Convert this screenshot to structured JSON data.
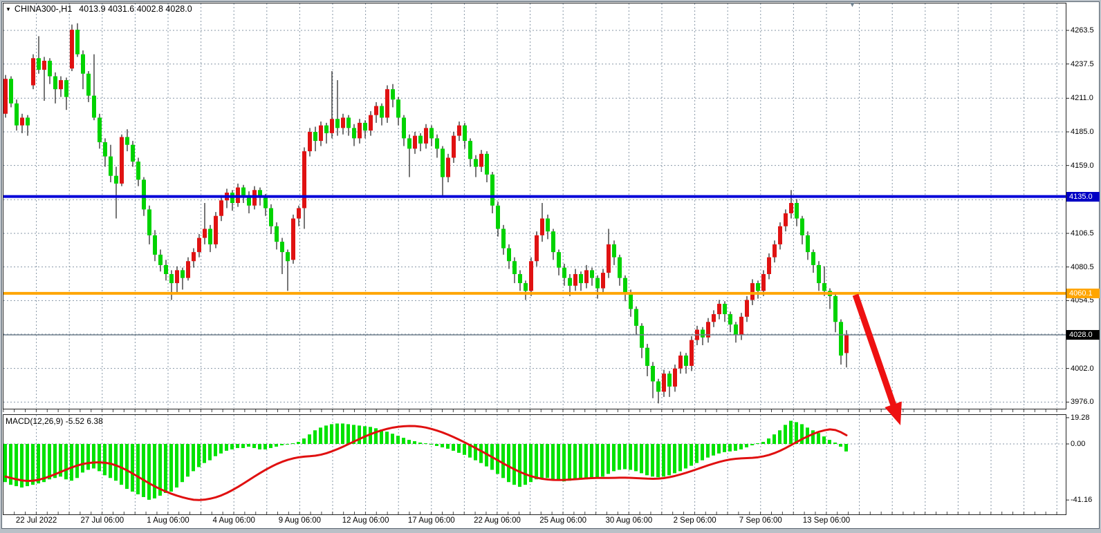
{
  "window": {
    "title_symbol": "CHINA300-,H1",
    "title_ohlc": "4013.9 4031.6 4002.8 4028.0",
    "dropdown_glyph": "▼",
    "scroll_marker_glyph": "▼"
  },
  "chart_data": {
    "type": "candlestick",
    "symbol": "CHINA300-",
    "timeframe": "H1",
    "title": "CHINA300-,H1",
    "last_bar": {
      "open": 4013.9,
      "high": 4031.6,
      "low": 4002.8,
      "close": 4028.0
    },
    "colors": {
      "bull_candle": "#e01212",
      "bear_candle": "#00d300",
      "wick": "#1a1a1a",
      "grid": "#8696a6",
      "blue_line": "#0000d8",
      "orange_line": "#ffa500",
      "price_line": "#6f7f8c",
      "macd_hist": "#00e200",
      "macd_signal": "#e01010",
      "arrow": "#ee1111",
      "badge_blue": "#0000c4",
      "badge_orange": "#ffa500",
      "badge_black": "#000000"
    },
    "y_axis": {
      "tick_labels": [
        "4263.5",
        "4237.5",
        "4211.0",
        "4185.0",
        "4159.0",
        "4106.5",
        "4080.5",
        "4054.5",
        "4002.0",
        "3976.0"
      ],
      "tick_values": [
        4263.5,
        4237.5,
        4211.0,
        4185.0,
        4159.0,
        4106.5,
        4080.5,
        4054.5,
        4002.0,
        3976.0
      ],
      "grid_values": [
        4263.5,
        4237.5,
        4211.0,
        4185.0,
        4159.0,
        4132.5,
        4106.5,
        4080.5,
        4054.5,
        4028.5,
        4002.0,
        3976.0
      ],
      "range_top": 4285.0,
      "range_bottom": 3971.0
    },
    "badges": [
      {
        "text": "4135.0",
        "value": 4135.0,
        "color_key": "badge_blue"
      },
      {
        "text": "4060.1",
        "value": 4060.1,
        "color_key": "badge_orange"
      },
      {
        "text": "4028.0",
        "value": 4028.0,
        "color_key": "badge_black"
      }
    ],
    "hlines": [
      {
        "value": 4135.0,
        "color_key": "blue_line",
        "width": 4
      },
      {
        "value": 4060.1,
        "color_key": "orange_line",
        "width": 4
      },
      {
        "value": 4028.0,
        "color_key": "price_line",
        "width": 1.4
      }
    ],
    "x_axis": {
      "labels": [
        "22 Jul 2022",
        "27 Jul 06:00",
        "1 Aug 06:00",
        "4 Aug 06:00",
        "9 Aug 06:00",
        "12 Aug 06:00",
        "17 Aug 06:00",
        "22 Aug 06:00",
        "25 Aug 06:00",
        "30 Aug 06:00",
        "2 Sep 06:00",
        "7 Sep 06:00",
        "13 Sep 06:00"
      ]
    },
    "candles": [
      [
        4199,
        4229,
        4196,
        4226
      ],
      [
        4226,
        4228,
        4204,
        4207
      ],
      [
        4207,
        4210,
        4186,
        4190
      ],
      [
        4190,
        4199,
        4184,
        4196
      ],
      [
        4196,
        4198,
        4182,
        4190
      ],
      [
        4221,
        4245,
        4218,
        4242
      ],
      [
        4242,
        4259,
        4230,
        4233
      ],
      [
        4233,
        4243,
        4209,
        4240
      ],
      [
        4240,
        4242,
        4222,
        4228
      ],
      [
        4228,
        4231,
        4207,
        4218
      ],
      [
        4218,
        4228,
        4212,
        4225
      ],
      [
        4225,
        4227,
        4202,
        4212
      ],
      [
        4234,
        4268,
        4232,
        4264
      ],
      [
        4264,
        4269,
        4243,
        4245
      ],
      [
        4245,
        4248,
        4218,
        4230
      ],
      [
        4230,
        4232,
        4208,
        4213
      ],
      [
        4213,
        4245,
        4194,
        4196
      ],
      [
        4196,
        4199,
        4172,
        4177
      ],
      [
        4177,
        4180,
        4158,
        4166
      ],
      [
        4166,
        4175,
        4146,
        4151
      ],
      [
        4151,
        4158,
        4118,
        4145
      ],
      [
        4145,
        4183,
        4143,
        4181
      ],
      [
        4181,
        4187,
        4170,
        4175
      ],
      [
        4175,
        4178,
        4158,
        4162
      ],
      [
        4162,
        4165,
        4143,
        4148
      ],
      [
        4148,
        4150,
        4120,
        4125
      ],
      [
        4125,
        4128,
        4098,
        4105
      ],
      [
        4105,
        4109,
        4085,
        4090
      ],
      [
        4090,
        4094,
        4077,
        4082
      ],
      [
        4082,
        4086,
        4070,
        4075
      ],
      [
        4075,
        4078,
        4055,
        4068
      ],
      [
        4068,
        4081,
        4060,
        4078
      ],
      [
        4078,
        4080,
        4063,
        4072
      ],
      [
        4072,
        4088,
        4070,
        4085
      ],
      [
        4085,
        4095,
        4080,
        4092
      ],
      [
        4092,
        4106,
        4088,
        4103
      ],
      [
        4103,
        4130,
        4098,
        4110
      ],
      [
        4110,
        4113,
        4092,
        4098
      ],
      [
        4098,
        4123,
        4095,
        4120
      ],
      [
        4120,
        4136,
        4116,
        4132
      ],
      [
        4132,
        4141,
        4126,
        4138
      ],
      [
        4138,
        4140,
        4124,
        4130
      ],
      [
        4130,
        4145,
        4127,
        4142
      ],
      [
        4142,
        4144,
        4130,
        4136
      ],
      [
        4136,
        4139,
        4122,
        4128
      ],
      [
        4128,
        4143,
        4125,
        4140
      ],
      [
        4140,
        4142,
        4128,
        4134
      ],
      [
        4134,
        4137,
        4120,
        4126
      ],
      [
        4126,
        4129,
        4106,
        4112
      ],
      [
        4112,
        4115,
        4094,
        4100
      ],
      [
        4100,
        4103,
        4075,
        4092
      ],
      [
        4092,
        4094,
        4062,
        4085
      ],
      [
        4086,
        4121,
        4083,
        4118
      ],
      [
        4118,
        4128,
        4112,
        4126
      ],
      [
        4126,
        4173,
        4110,
        4170
      ],
      [
        4170,
        4188,
        4166,
        4185
      ],
      [
        4185,
        4189,
        4170,
        4178
      ],
      [
        4178,
        4193,
        4174,
        4190
      ],
      [
        4190,
        4192,
        4176,
        4184
      ],
      [
        4184,
        4232,
        4180,
        4195
      ],
      [
        4195,
        4225,
        4182,
        4188
      ],
      [
        4188,
        4199,
        4183,
        4196
      ],
      [
        4196,
        4198,
        4182,
        4188
      ],
      [
        4188,
        4191,
        4174,
        4180
      ],
      [
        4180,
        4195,
        4176,
        4192
      ],
      [
        4192,
        4194,
        4180,
        4186
      ],
      [
        4186,
        4201,
        4182,
        4198
      ],
      [
        4198,
        4208,
        4192,
        4205
      ],
      [
        4205,
        4207,
        4190,
        4196
      ],
      [
        4196,
        4221,
        4192,
        4218
      ],
      [
        4218,
        4222,
        4204,
        4210
      ],
      [
        4210,
        4212,
        4190,
        4196
      ],
      [
        4196,
        4198,
        4174,
        4180
      ],
      [
        4180,
        4183,
        4150,
        4172
      ],
      [
        4172,
        4185,
        4168,
        4182
      ],
      [
        4182,
        4184,
        4170,
        4176
      ],
      [
        4176,
        4191,
        4172,
        4188
      ],
      [
        4188,
        4190,
        4174,
        4180
      ],
      [
        4180,
        4183,
        4165,
        4172
      ],
      [
        4172,
        4174,
        4134,
        4150
      ],
      [
        4150,
        4168,
        4146,
        4165
      ],
      [
        4165,
        4185,
        4161,
        4182
      ],
      [
        4182,
        4193,
        4178,
        4190
      ],
      [
        4190,
        4192,
        4172,
        4178
      ],
      [
        4178,
        4180,
        4158,
        4164
      ],
      [
        4164,
        4167,
        4150,
        4158
      ],
      [
        4158,
        4171,
        4154,
        4168
      ],
      [
        4168,
        4170,
        4146,
        4152
      ],
      [
        4152,
        4154,
        4122,
        4128
      ],
      [
        4128,
        4131,
        4104,
        4110
      ],
      [
        4110,
        4113,
        4090,
        4095
      ],
      [
        4095,
        4098,
        4079,
        4085
      ],
      [
        4085,
        4088,
        4068,
        4075
      ],
      [
        4075,
        4078,
        4062,
        4068
      ],
      [
        4068,
        4070,
        4055,
        4062
      ],
      [
        4062,
        4088,
        4058,
        4085
      ],
      [
        4085,
        4108,
        4081,
        4105
      ],
      [
        4105,
        4130,
        4100,
        4118
      ],
      [
        4118,
        4121,
        4102,
        4108
      ],
      [
        4108,
        4110,
        4086,
        4092
      ],
      [
        4092,
        4094,
        4074,
        4080
      ],
      [
        4080,
        4083,
        4066,
        4072
      ],
      [
        4072,
        4075,
        4058,
        4066
      ],
      [
        4066,
        4079,
        4062,
        4075
      ],
      [
        4075,
        4077,
        4062,
        4068
      ],
      [
        4068,
        4082,
        4064,
        4078
      ],
      [
        4078,
        4080,
        4066,
        4072
      ],
      [
        4072,
        4074,
        4056,
        4064
      ],
      [
        4064,
        4079,
        4060,
        4076
      ],
      [
        4076,
        4110,
        4072,
        4098
      ],
      [
        4098,
        4101,
        4082,
        4088
      ],
      [
        4088,
        4090,
        4066,
        4072
      ],
      [
        4072,
        4074,
        4054,
        4060
      ],
      [
        4060,
        4063,
        4042,
        4048
      ],
      [
        4048,
        4050,
        4028,
        4035
      ],
      [
        4035,
        4037,
        4010,
        4018
      ],
      [
        4018,
        4021,
        3996,
        4004
      ],
      [
        4004,
        4007,
        3979,
        3992
      ],
      [
        3992,
        3994,
        3975,
        3984
      ],
      [
        3984,
        4001,
        3980,
        3998
      ],
      [
        3998,
        4000,
        3980,
        3988
      ],
      [
        3988,
        4005,
        3984,
        4002
      ],
      [
        4002,
        4015,
        3998,
        4012
      ],
      [
        4012,
        4014,
        3998,
        4004
      ],
      [
        4004,
        4027,
        4000,
        4024
      ],
      [
        4024,
        4035,
        4020,
        4032
      ],
      [
        4032,
        4034,
        4020,
        4026
      ],
      [
        4026,
        4041,
        4022,
        4038
      ],
      [
        4038,
        4047,
        4034,
        4044
      ],
      [
        4044,
        4055,
        4040,
        4052
      ],
      [
        4052,
        4054,
        4038,
        4044
      ],
      [
        4044,
        4046,
        4030,
        4036
      ],
      [
        4036,
        4038,
        4022,
        4028
      ],
      [
        4028,
        4045,
        4024,
        4042
      ],
      [
        4042,
        4058,
        4038,
        4055
      ],
      [
        4055,
        4071,
        4051,
        4068
      ],
      [
        4068,
        4070,
        4056,
        4062
      ],
      [
        4062,
        4078,
        4058,
        4075
      ],
      [
        4075,
        4091,
        4071,
        4088
      ],
      [
        4088,
        4101,
        4084,
        4098
      ],
      [
        4098,
        4115,
        4094,
        4112
      ],
      [
        4112,
        4125,
        4108,
        4122
      ],
      [
        4122,
        4140,
        4118,
        4130
      ],
      [
        4130,
        4133,
        4112,
        4118
      ],
      [
        4118,
        4120,
        4098,
        4105
      ],
      [
        4105,
        4108,
        4086,
        4092
      ],
      [
        4092,
        4094,
        4076,
        4082
      ],
      [
        4082,
        4085,
        4062,
        4068
      ],
      [
        4068,
        4081,
        4058,
        4062
      ],
      [
        4062,
        4064,
        4048,
        4058
      ],
      [
        4058,
        4060,
        4030,
        4038
      ],
      [
        4038,
        4040,
        4005,
        4012
      ],
      [
        4013.9,
        4031.6,
        4002.8,
        4028.0
      ]
    ],
    "macd": {
      "label": "MACD(12,26,9)",
      "values_text": "-5.52 6.38",
      "label_full": "MACD(12,26,9) -5.52 6.38",
      "macd_value": -5.52,
      "signal_value": 6.38,
      "axis_labels": [
        "19.28",
        "0.00",
        "-41.16"
      ],
      "axis_values": [
        19.28,
        0.0,
        -41.16
      ],
      "range_top": 21.8,
      "range_bottom": -51.7,
      "histogram": [
        -28,
        -30,
        -31,
        -32,
        -31,
        -30,
        -29,
        -28,
        -26,
        -25,
        -24,
        -26,
        -27,
        -25,
        -21,
        -19,
        -18,
        -20,
        -23,
        -25,
        -27,
        -30,
        -33,
        -35,
        -37,
        -39,
        -41,
        -40,
        -38,
        -36,
        -35,
        -32,
        -28,
        -24,
        -20,
        -17,
        -14,
        -12,
        -9,
        -7,
        -5,
        -4,
        -3,
        -3,
        -2,
        -3,
        -4,
        -4,
        -3,
        -2,
        -1,
        -0.5,
        0.5,
        1.5,
        4,
        7,
        10,
        12,
        13.5,
        14.5,
        15,
        15,
        14.5,
        14,
        13.5,
        13,
        12.5,
        11.5,
        10.5,
        9,
        7.5,
        6,
        4.5,
        3,
        2,
        1,
        0.5,
        -0.5,
        -1.5,
        -2.5,
        -3.5,
        -5,
        -6.5,
        -8,
        -10,
        -12,
        -14,
        -16.5,
        -19,
        -22,
        -25,
        -28,
        -30,
        -31.5,
        -30,
        -28,
        -26,
        -25,
        -25,
        -26,
        -27,
        -27.5,
        -27,
        -26.5,
        -26,
        -26,
        -25.5,
        -25,
        -24,
        -22,
        -20,
        -19,
        -18.5,
        -19,
        -20,
        -21.5,
        -23,
        -24,
        -24.5,
        -24,
        -23,
        -21.5,
        -20,
        -18,
        -16,
        -14,
        -12,
        -10,
        -8.5,
        -7,
        -6,
        -5.5,
        -5,
        -4,
        -2.5,
        -1,
        0.5,
        1.5,
        4,
        7,
        10,
        14,
        17,
        16,
        14.5,
        12,
        10,
        8,
        5.5,
        3,
        1,
        -2,
        -5.52
      ],
      "signal": [
        -24,
        -25,
        -26,
        -26.8,
        -27.2,
        -27,
        -26.3,
        -25.2,
        -23.8,
        -22.2,
        -20.5,
        -18.8,
        -17.2,
        -15.8,
        -14.7,
        -14,
        -13.6,
        -13.5,
        -13.8,
        -14.5,
        -15.8,
        -17.5,
        -19.5,
        -21.8,
        -24.2,
        -26.6,
        -29,
        -31.2,
        -33.2,
        -35,
        -36.6,
        -38,
        -39.2,
        -40.2,
        -41,
        -41.2,
        -40.9,
        -40.2,
        -39.2,
        -37.8,
        -36,
        -33.9,
        -31.6,
        -29.1,
        -26.5,
        -23.9,
        -21.4,
        -19,
        -16.8,
        -14.8,
        -13.1,
        -11.7,
        -10.6,
        -9.8,
        -9.3,
        -9,
        -8.6,
        -7.9,
        -6.8,
        -5.4,
        -3.8,
        -2,
        -0.1,
        1.8,
        3.7,
        5.5,
        7.2,
        8.7,
        10,
        11.1,
        12,
        12.6,
        13,
        13.2,
        13.1,
        12.7,
        12,
        11,
        9.8,
        8.4,
        6.8,
        5,
        3.1,
        1.1,
        -1,
        -3.1,
        -5.3,
        -7.5,
        -9.8,
        -12.1,
        -14.4,
        -16.6,
        -18.7,
        -20.6,
        -22.3,
        -23.7,
        -24.8,
        -25.6,
        -26.1,
        -26.4,
        -26.5,
        -26.4,
        -26.2,
        -25.9,
        -25.6,
        -25.3,
        -25.1,
        -25,
        -25,
        -25,
        -24.9,
        -24.8,
        -24.8,
        -24.9,
        -25.1,
        -25.3,
        -25.5,
        -25.6,
        -25.5,
        -25.1,
        -24.4,
        -23.5,
        -22.4,
        -21.2,
        -19.9,
        -18.5,
        -17.1,
        -15.7,
        -14.4,
        -13.2,
        -12.2,
        -11.4,
        -10.9,
        -10.6,
        -10.4,
        -10.2,
        -9.8,
        -9.1,
        -8.1,
        -6.7,
        -5,
        -3,
        -0.8,
        1.4,
        3.6,
        5.6,
        7.4,
        8.9,
        10,
        10.7,
        10.2,
        8.6,
        6.38
      ]
    },
    "annotation_arrow": {
      "from": [
        1237,
        427
      ],
      "tip": [
        1302,
        616
      ],
      "color_key": "arrow"
    }
  }
}
